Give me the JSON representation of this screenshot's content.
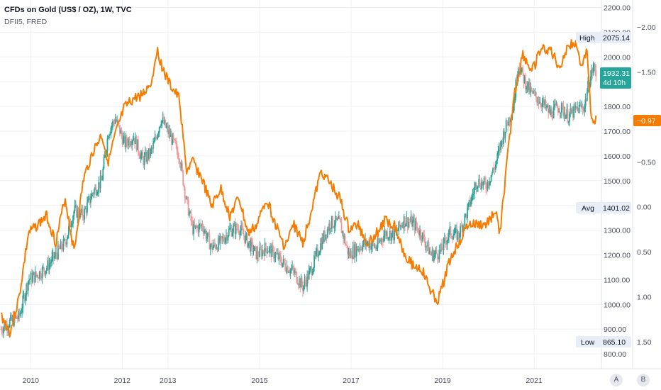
{
  "header": {
    "title": "CFDs on Gold (US$ / OZ), 1W, TVC",
    "subtitle": "DFII5, FRED"
  },
  "buttons": {
    "a_label": "A",
    "b_label": "B"
  },
  "colors": {
    "up": "#26a69a",
    "down": "#ef9a9a",
    "real_yield": "#f57c00",
    "price_badge": "#26a69a",
    "grid": "#eef0f4"
  },
  "badges": {
    "high_label": "High",
    "high_value": "2075.14",
    "price_value": "1932.31",
    "price_countdown": "4d 10h",
    "yield_value": "−0.97",
    "avg_label": "Avg",
    "avg_value": "1401.02",
    "low_label": "Low",
    "low_value": "865.10"
  },
  "chart_data": {
    "type": "line",
    "title": "CFDs on Gold (US$ / OZ), 1W, TVC",
    "x_tick_labels": [
      "2010",
      "2012",
      "2013",
      "2015",
      "2017",
      "2019",
      "2021"
    ],
    "x_ticks": [
      2009.95,
      2011.95,
      2012.95,
      2014.95,
      2016.95,
      2018.95,
      2020.95
    ],
    "xlim": [
      2009.28,
      2022.42
    ],
    "grid": true,
    "price_axis": {
      "side": "right",
      "ylim": [
        740,
        2230
      ],
      "ticks": [
        800,
        900,
        1000,
        1100,
        1200,
        1300,
        1400,
        1500,
        1600,
        1700,
        1800,
        1900,
        2000,
        2100,
        2200
      ],
      "tick_labels": [
        "800.00",
        "900.00",
        "1000.00",
        "1100.00",
        "1200.00",
        "1300.00",
        "1400.00",
        "1500.00",
        "1600.00",
        "1700.00",
        "1800.00",
        "1900.00",
        "2000.00",
        "2100.00",
        "2200.00"
      ]
    },
    "yield_axis": {
      "side": "far-right",
      "inverted": true,
      "ylim": [
        1.8,
        -2.3
      ],
      "ticks": [
        -2.0,
        -1.5,
        -1.0,
        -0.5,
        0.0,
        0.5,
        1.0,
        1.5
      ],
      "tick_labels": [
        "−2.00",
        "−1.50",
        "−1.00",
        "−0.50",
        "0.00",
        "0.50",
        "1.00",
        "1.50"
      ]
    },
    "series": [
      {
        "name": "CFDs on Gold (US$ / OZ)",
        "kind": "candlestick",
        "x": [
          2009.3,
          2009.5,
          2009.7,
          2009.9,
          2010.1,
          2010.3,
          2010.5,
          2010.7,
          2010.9,
          2011.1,
          2011.3,
          2011.5,
          2011.65,
          2011.8,
          2012.0,
          2012.2,
          2012.4,
          2012.6,
          2012.8,
          2013.0,
          2013.2,
          2013.35,
          2013.5,
          2013.7,
          2013.9,
          2014.1,
          2014.3,
          2014.5,
          2014.7,
          2014.9,
          2015.1,
          2015.3,
          2015.5,
          2015.7,
          2015.9,
          2016.1,
          2016.3,
          2016.5,
          2016.7,
          2016.9,
          2017.1,
          2017.3,
          2017.5,
          2017.7,
          2017.9,
          2018.1,
          2018.3,
          2018.5,
          2018.7,
          2018.9,
          2019.1,
          2019.3,
          2019.5,
          2019.7,
          2019.9,
          2020.1,
          2020.3,
          2020.5,
          2020.6,
          2020.75,
          2020.9,
          2021.1,
          2021.3,
          2021.5,
          2021.7,
          2021.9,
          2022.05,
          2022.15,
          2022.25,
          2022.3
        ],
        "values": [
          900,
          930,
          950,
          1100,
          1120,
          1150,
          1200,
          1250,
          1380,
          1360,
          1450,
          1500,
          1700,
          1750,
          1650,
          1680,
          1580,
          1620,
          1750,
          1680,
          1600,
          1420,
          1300,
          1320,
          1230,
          1250,
          1300,
          1310,
          1250,
          1200,
          1230,
          1200,
          1160,
          1130,
          1070,
          1150,
          1250,
          1330,
          1330,
          1200,
          1230,
          1250,
          1230,
          1290,
          1280,
          1340,
          1330,
          1280,
          1200,
          1210,
          1290,
          1280,
          1380,
          1500,
          1480,
          1560,
          1700,
          1800,
          1970,
          1900,
          1850,
          1820,
          1770,
          1800,
          1760,
          1790,
          1800,
          1900,
          1960,
          1932.31
        ]
      },
      {
        "name": "DFII5, FRED",
        "kind": "line",
        "x": [
          2009.3,
          2009.5,
          2009.7,
          2009.9,
          2010.1,
          2010.3,
          2010.5,
          2010.7,
          2010.9,
          2011.1,
          2011.3,
          2011.5,
          2011.65,
          2011.8,
          2012.0,
          2012.2,
          2012.4,
          2012.6,
          2012.7,
          2012.9,
          2013.0,
          2013.2,
          2013.35,
          2013.5,
          2013.7,
          2013.9,
          2014.1,
          2014.3,
          2014.5,
          2014.7,
          2014.9,
          2015.1,
          2015.3,
          2015.5,
          2015.7,
          2015.9,
          2016.1,
          2016.3,
          2016.5,
          2016.7,
          2016.9,
          2017.1,
          2017.3,
          2017.5,
          2017.7,
          2017.9,
          2018.1,
          2018.3,
          2018.5,
          2018.7,
          2018.85,
          2019.1,
          2019.3,
          2019.5,
          2019.7,
          2019.9,
          2020.1,
          2020.2,
          2020.3,
          2020.5,
          2020.7,
          2020.9,
          2021.1,
          2021.3,
          2021.5,
          2021.7,
          2021.9,
          2022.0,
          2022.1,
          2022.2,
          2022.3
        ],
        "values": [
          1.2,
          1.4,
          1.0,
          0.3,
          0.2,
          0.1,
          0.4,
          -0.1,
          0.5,
          -0.3,
          -0.6,
          -0.8,
          -0.5,
          -0.8,
          -1.1,
          -1.2,
          -1.25,
          -1.4,
          -1.75,
          -1.45,
          -1.35,
          -1.2,
          -0.4,
          -0.5,
          -0.3,
          0.0,
          -0.2,
          0.1,
          -0.1,
          0.3,
          0.2,
          -0.1,
          0.2,
          0.45,
          0.2,
          0.4,
          0.0,
          -0.4,
          -0.25,
          -0.1,
          0.25,
          0.2,
          0.4,
          0.3,
          0.15,
          0.2,
          0.5,
          0.65,
          0.7,
          0.95,
          1.05,
          0.6,
          0.4,
          0.2,
          0.2,
          0.2,
          0.05,
          0.3,
          -0.2,
          -1.2,
          -1.7,
          -1.5,
          -1.75,
          -1.75,
          -1.55,
          -1.8,
          -1.8,
          -1.5,
          -1.8,
          -0.98,
          -0.97
        ]
      }
    ]
  }
}
